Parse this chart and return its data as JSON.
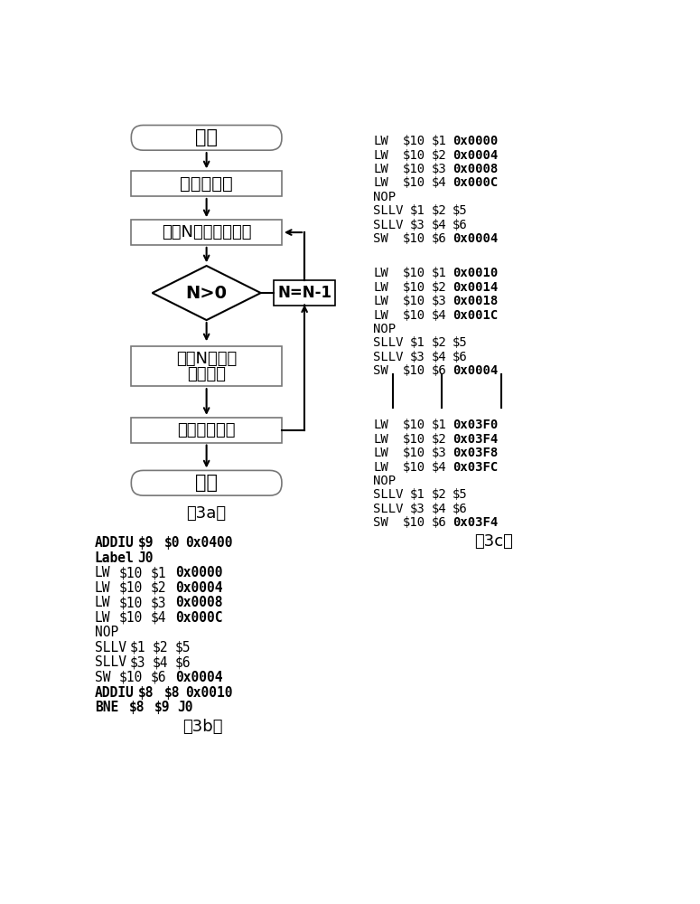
{
  "flowchart": {
    "start_text": "开始",
    "box1_text": "移除控制器",
    "box2_text": "设置N等于循环次数",
    "diamond_text": "N>0",
    "box3_line1": "根据N，设置",
    "box3_line2": "偏移地址",
    "box4_text": "输出程序序列",
    "end_text": "终止",
    "side_box_text": "N=N-1",
    "caption_3a": "（3a）"
  },
  "caption_3b": "（3b）",
  "caption_3c": "（3c）",
  "bg": "#ffffff"
}
